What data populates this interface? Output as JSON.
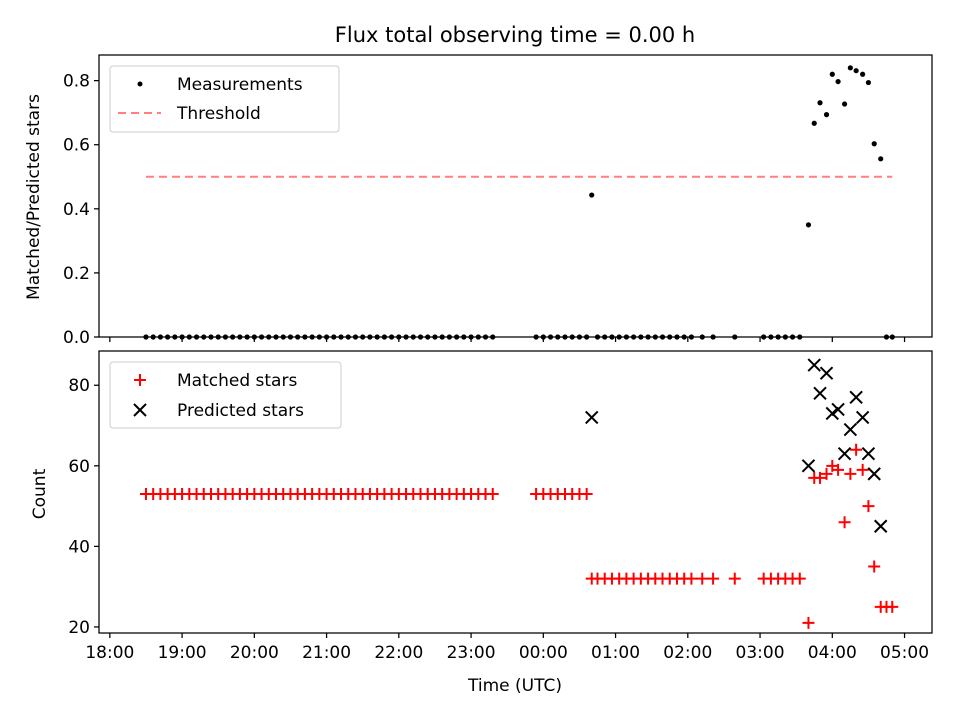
{
  "chart_data": [
    {
      "type": "scatter",
      "title": "Flux total observing time = 0.00 h",
      "xlabel": "",
      "ylabel": "Matched/Predicted stars",
      "xlim": [
        -6.15,
        5.38
      ],
      "ylim": [
        0,
        0.88
      ],
      "yticks": [
        "0.0",
        "0.2",
        "0.4",
        "0.6",
        "0.8"
      ],
      "legend_position": "top-left",
      "series": [
        {
          "name": "Measurements",
          "marker": "dot",
          "color": "#000000",
          "x": [
            -5.5,
            -5.4,
            -5.3,
            -5.2,
            -5.1,
            -5.0,
            -4.9,
            -4.8,
            -4.7,
            -4.6,
            -4.5,
            -4.4,
            -4.3,
            -4.2,
            -4.1,
            -4.0,
            -3.9,
            -3.8,
            -3.7,
            -3.6,
            -3.5,
            -3.4,
            -3.3,
            -3.2,
            -3.1,
            -3.0,
            -2.9,
            -2.8,
            -2.7,
            -2.6,
            -2.5,
            -2.4,
            -2.3,
            -2.2,
            -2.1,
            -2.0,
            -1.9,
            -1.8,
            -1.7,
            -1.6,
            -1.5,
            -1.4,
            -1.3,
            -1.2,
            -1.1,
            -1.0,
            -0.9,
            -0.8,
            -0.7,
            -0.1,
            0.0,
            0.1,
            0.2,
            0.3,
            0.4,
            0.5,
            0.6,
            0.67,
            0.75,
            0.85,
            0.95,
            1.05,
            1.15,
            1.25,
            1.35,
            1.45,
            1.55,
            1.65,
            1.75,
            1.85,
            1.95,
            2.05,
            2.2,
            2.35,
            2.65,
            3.05,
            3.15,
            3.25,
            3.35,
            3.45,
            3.55,
            3.67,
            3.75,
            3.83,
            3.92,
            4.0,
            4.08,
            4.17,
            4.25,
            4.33,
            4.42,
            4.5,
            4.58,
            4.67,
            4.75,
            4.83
          ],
          "y": [
            0,
            0,
            0,
            0,
            0,
            0,
            0,
            0,
            0,
            0,
            0,
            0,
            0,
            0,
            0,
            0,
            0,
            0,
            0,
            0,
            0,
            0,
            0,
            0,
            0,
            0,
            0,
            0,
            0,
            0,
            0,
            0,
            0,
            0,
            0,
            0,
            0,
            0,
            0,
            0,
            0,
            0,
            0,
            0,
            0,
            0,
            0,
            0,
            0,
            0,
            0,
            0,
            0,
            0,
            0,
            0,
            0,
            0.443,
            0,
            0,
            0,
            0,
            0,
            0,
            0,
            0,
            0,
            0,
            0,
            0,
            0,
            0,
            0,
            0,
            0,
            0,
            0,
            0,
            0,
            0,
            0,
            0.35,
            0.667,
            0.731,
            0.694,
            0.82,
            0.797,
            0.727,
            0.84,
            0.831,
            0.82,
            0.794,
            0.603,
            0.556,
            0,
            0
          ]
        },
        {
          "name": "Threshold",
          "marker": "dashed-line",
          "color": "#ff7f7f",
          "x": [
            -5.5,
            4.83
          ],
          "y": [
            0.5,
            0.5
          ]
        }
      ]
    },
    {
      "type": "scatter",
      "title": "",
      "xlabel": "Time (UTC)",
      "ylabel": "Count",
      "xlim": [
        -6.15,
        5.38
      ],
      "ylim": [
        18.5,
        88.5
      ],
      "yticks": [
        "20",
        "40",
        "60",
        "80"
      ],
      "xticks": [
        -6,
        -5,
        -4,
        -3,
        -2,
        -1,
        0,
        1,
        2,
        3,
        4,
        5
      ],
      "xticklabels": [
        "18:00",
        "19:00",
        "20:00",
        "21:00",
        "22:00",
        "23:00",
        "00:00",
        "01:00",
        "02:00",
        "03:00",
        "04:00",
        "05:00"
      ],
      "legend_position": "top-left",
      "series": [
        {
          "name": "Matched stars",
          "marker": "plus",
          "color": "#ff0000",
          "x": [
            -5.5,
            -5.4,
            -5.3,
            -5.2,
            -5.1,
            -5.0,
            -4.9,
            -4.8,
            -4.7,
            -4.6,
            -4.5,
            -4.4,
            -4.3,
            -4.2,
            -4.1,
            -4.0,
            -3.9,
            -3.8,
            -3.7,
            -3.6,
            -3.5,
            -3.4,
            -3.3,
            -3.2,
            -3.1,
            -3.0,
            -2.9,
            -2.8,
            -2.7,
            -2.6,
            -2.5,
            -2.4,
            -2.3,
            -2.2,
            -2.1,
            -2.0,
            -1.9,
            -1.8,
            -1.7,
            -1.6,
            -1.5,
            -1.4,
            -1.3,
            -1.2,
            -1.1,
            -1.0,
            -0.9,
            -0.8,
            -0.7,
            -0.1,
            0.0,
            0.1,
            0.2,
            0.3,
            0.4,
            0.5,
            0.6,
            0.67,
            0.75,
            0.85,
            0.95,
            1.05,
            1.15,
            1.25,
            1.35,
            1.45,
            1.55,
            1.65,
            1.75,
            1.85,
            1.95,
            2.05,
            2.2,
            2.35,
            2.65,
            3.05,
            3.15,
            3.25,
            3.35,
            3.45,
            3.55,
            3.67,
            3.75,
            3.83,
            3.92,
            4.0,
            4.08,
            4.17,
            4.25,
            4.33,
            4.42,
            4.5,
            4.58,
            4.67,
            4.75,
            4.83
          ],
          "y": [
            53,
            53,
            53,
            53,
            53,
            53,
            53,
            53,
            53,
            53,
            53,
            53,
            53,
            53,
            53,
            53,
            53,
            53,
            53,
            53,
            53,
            53,
            53,
            53,
            53,
            53,
            53,
            53,
            53,
            53,
            53,
            53,
            53,
            53,
            53,
            53,
            53,
            53,
            53,
            53,
            53,
            53,
            53,
            53,
            53,
            53,
            53,
            53,
            53,
            53,
            53,
            53,
            53,
            53,
            53,
            53,
            53,
            32,
            32,
            32,
            32,
            32,
            32,
            32,
            32,
            32,
            32,
            32,
            32,
            32,
            32,
            32,
            32,
            32,
            32,
            32,
            32,
            32,
            32,
            32,
            32,
            21,
            57,
            57,
            58,
            60,
            59,
            46,
            58,
            64,
            59,
            50,
            35,
            25,
            25,
            25
          ]
        },
        {
          "name": "Predicted stars",
          "marker": "x",
          "color": "#000000",
          "x": [
            0.67,
            3.67,
            3.75,
            3.83,
            3.92,
            4.0,
            4.08,
            4.17,
            4.25,
            4.33,
            4.42,
            4.5,
            4.58,
            4.67
          ],
          "y": [
            72,
            60,
            85,
            78,
            83,
            73,
            74,
            63,
            69,
            77,
            72,
            63,
            58,
            45
          ]
        }
      ]
    }
  ]
}
